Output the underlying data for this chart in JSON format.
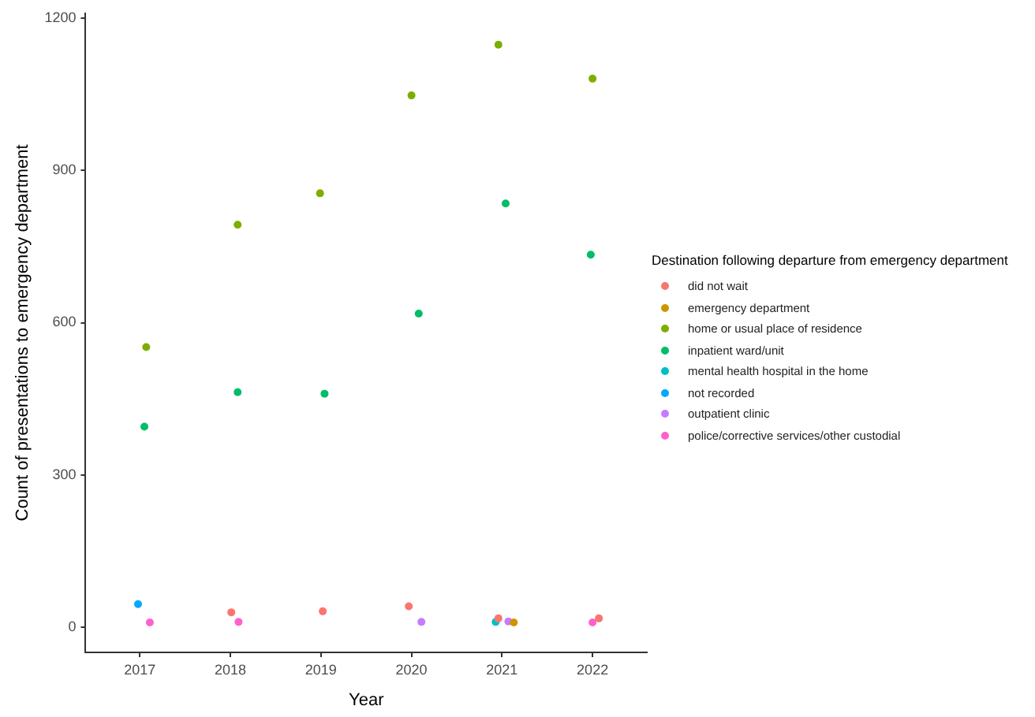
{
  "chart_data": {
    "type": "scatter",
    "xlabel": "Year",
    "ylabel": "Count of presentations to emergency department",
    "legend_title": "Destination following departure from emergency department",
    "legend": "right",
    "grid": false,
    "marker": "circle",
    "xlim": [
      2016.4,
      2022.6
    ],
    "xticks": [
      2017,
      2018,
      2019,
      2020,
      2021,
      2022
    ],
    "ylim": [
      -50,
      1210
    ],
    "yticks": [
      0,
      300,
      600,
      900,
      1200
    ],
    "series": [
      {
        "name": "did not wait",
        "color": "#f8766d",
        "x": [
          2018.01,
          2019.02,
          2019.97,
          2020.96,
          2022.07
        ],
        "values": [
          29,
          31,
          41,
          17,
          17
        ]
      },
      {
        "name": "emergency department",
        "color": "#cd9600",
        "x": [
          2021.13
        ],
        "values": [
          9
        ]
      },
      {
        "name": "home or usual place of residence",
        "color": "#7cae00",
        "x": [
          2017.07,
          2018.08,
          2018.99,
          2020.0,
          2020.96,
          2022.0
        ],
        "values": [
          552,
          793,
          855,
          1048,
          1148,
          1081
        ]
      },
      {
        "name": "inpatient ward/unit",
        "color": "#00be67",
        "x": [
          2017.05,
          2018.08,
          2019.04,
          2020.08,
          2021.04,
          2021.98
        ],
        "values": [
          395,
          463,
          460,
          618,
          835,
          734
        ]
      },
      {
        "name": "mental health hospital in the home",
        "color": "#00bfc4",
        "x": [
          2020.93
        ],
        "values": [
          10
        ]
      },
      {
        "name": "not recorded",
        "color": "#00a9ff",
        "x": [
          2016.98
        ],
        "values": [
          45
        ]
      },
      {
        "name": "outpatient clinic",
        "color": "#c77cff",
        "x": [
          2020.11,
          2021.07
        ],
        "values": [
          10,
          11
        ]
      },
      {
        "name": "police/corrective services/other custodial",
        "color": "#ff61cc",
        "x": [
          2017.11,
          2018.09,
          2022.0
        ],
        "values": [
          9,
          10,
          9
        ]
      }
    ]
  }
}
